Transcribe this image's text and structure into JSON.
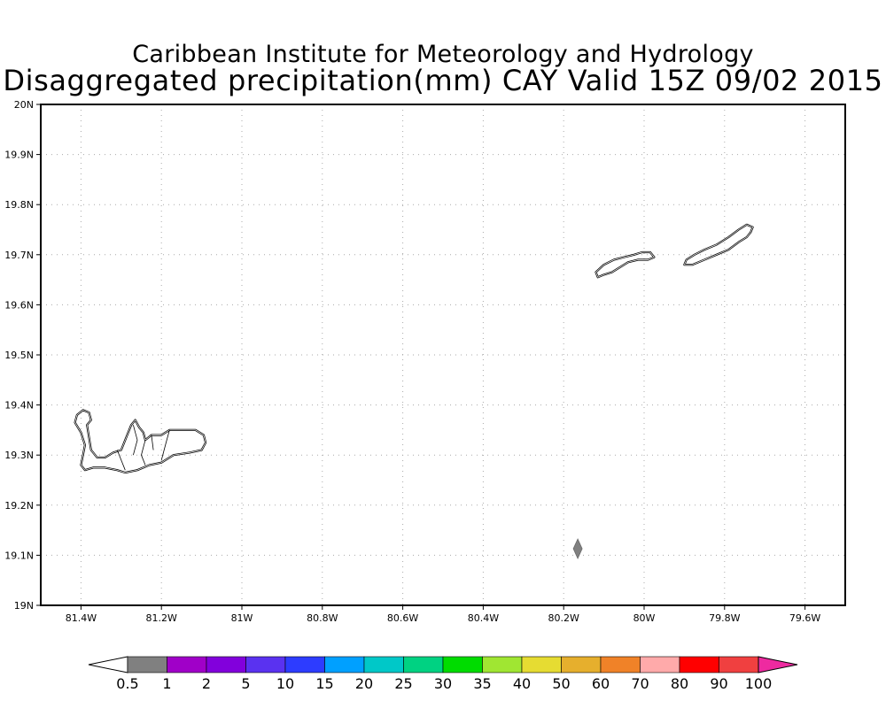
{
  "title": {
    "line1": "Caribbean Institute for Meteorology and Hydrology",
    "line2": "Disaggregated precipitation(mm) CAY Valid 15Z 09/02 2015"
  },
  "map": {
    "lon_range": [
      -81.5,
      -79.5
    ],
    "lat_range": [
      19.0,
      20.0
    ],
    "grid": "dotted",
    "lon_ticks": [
      {
        "value": -81.4,
        "label": "81.4W"
      },
      {
        "value": -81.2,
        "label": "81.2W"
      },
      {
        "value": -81.0,
        "label": "81W"
      },
      {
        "value": -80.8,
        "label": "80.8W"
      },
      {
        "value": -80.6,
        "label": "80.6W"
      },
      {
        "value": -80.4,
        "label": "80.4W"
      },
      {
        "value": -80.2,
        "label": "80.2W"
      },
      {
        "value": -80.0,
        "label": "80W"
      },
      {
        "value": -79.8,
        "label": "79.8W"
      },
      {
        "value": -79.6,
        "label": "79.6W"
      }
    ],
    "lat_ticks": [
      {
        "value": 19.0,
        "label": "19N"
      },
      {
        "value": 19.1,
        "label": "19.1N"
      },
      {
        "value": 19.2,
        "label": "19.2N"
      },
      {
        "value": 19.3,
        "label": "19.3N"
      },
      {
        "value": 19.4,
        "label": "19.4N"
      },
      {
        "value": 19.5,
        "label": "19.5N"
      },
      {
        "value": 19.6,
        "label": "19.6N"
      },
      {
        "value": 19.7,
        "label": "19.7N"
      },
      {
        "value": 19.8,
        "label": "19.8N"
      },
      {
        "value": 19.9,
        "label": "19.9N"
      },
      {
        "value": 20.0,
        "label": "20N"
      }
    ],
    "islands": [
      {
        "name": "grand-cayman",
        "outline": [
          [
            -81.41,
            19.38
          ],
          [
            -81.395,
            19.39
          ],
          [
            -81.38,
            19.385
          ],
          [
            -81.375,
            19.37
          ],
          [
            -81.385,
            19.36
          ],
          [
            -81.38,
            19.335
          ],
          [
            -81.375,
            19.31
          ],
          [
            -81.36,
            19.295
          ],
          [
            -81.34,
            19.295
          ],
          [
            -81.32,
            19.305
          ],
          [
            -81.3,
            19.31
          ],
          [
            -81.29,
            19.33
          ],
          [
            -81.275,
            19.36
          ],
          [
            -81.265,
            19.37
          ],
          [
            -81.255,
            19.355
          ],
          [
            -81.245,
            19.345
          ],
          [
            -81.24,
            19.33
          ],
          [
            -81.225,
            19.34
          ],
          [
            -81.2,
            19.34
          ],
          [
            -81.18,
            19.35
          ],
          [
            -81.15,
            19.35
          ],
          [
            -81.115,
            19.35
          ],
          [
            -81.095,
            19.34
          ],
          [
            -81.09,
            19.325
          ],
          [
            -81.1,
            19.31
          ],
          [
            -81.13,
            19.305
          ],
          [
            -81.17,
            19.3
          ],
          [
            -81.2,
            19.285
          ],
          [
            -81.23,
            19.28
          ],
          [
            -81.26,
            19.27
          ],
          [
            -81.29,
            19.265
          ],
          [
            -81.31,
            19.27
          ],
          [
            -81.34,
            19.275
          ],
          [
            -81.37,
            19.275
          ],
          [
            -81.39,
            19.27
          ],
          [
            -81.4,
            19.28
          ],
          [
            -81.395,
            19.3
          ],
          [
            -81.39,
            19.32
          ],
          [
            -81.4,
            19.345
          ],
          [
            -81.415,
            19.365
          ]
        ],
        "districts": [
          [
            [
              -81.31,
              19.31
            ],
            [
              -81.3,
              19.29
            ],
            [
              -81.29,
              19.27
            ]
          ],
          [
            [
              -81.24,
              19.33
            ],
            [
              -81.25,
              19.3
            ],
            [
              -81.24,
              19.28
            ]
          ],
          [
            [
              -81.18,
              19.35
            ],
            [
              -81.19,
              19.32
            ],
            [
              -81.2,
              19.29
            ]
          ],
          [
            [
              -81.27,
              19.36
            ],
            [
              -81.26,
              19.33
            ],
            [
              -81.27,
              19.3
            ]
          ],
          [
            [
              -81.225,
              19.34
            ],
            [
              -81.22,
              19.31
            ]
          ]
        ]
      },
      {
        "name": "cayman-brac",
        "outline": [
          [
            -79.73,
            19.755
          ],
          [
            -79.745,
            19.76
          ],
          [
            -79.765,
            19.75
          ],
          [
            -79.79,
            19.735
          ],
          [
            -79.82,
            19.72
          ],
          [
            -79.85,
            19.71
          ],
          [
            -79.875,
            19.7
          ],
          [
            -79.895,
            19.69
          ],
          [
            -79.9,
            19.68
          ],
          [
            -79.88,
            19.68
          ],
          [
            -79.85,
            19.69
          ],
          [
            -79.82,
            19.7
          ],
          [
            -79.79,
            19.71
          ],
          [
            -79.765,
            19.725
          ],
          [
            -79.745,
            19.735
          ],
          [
            -79.735,
            19.745
          ]
        ]
      },
      {
        "name": "little-cayman",
        "outline": [
          [
            -80.12,
            19.665
          ],
          [
            -80.1,
            19.68
          ],
          [
            -80.075,
            19.69
          ],
          [
            -80.05,
            19.695
          ],
          [
            -80.025,
            19.7
          ],
          [
            -80.005,
            19.705
          ],
          [
            -79.985,
            19.705
          ],
          [
            -79.975,
            19.695
          ],
          [
            -79.99,
            19.69
          ],
          [
            -80.015,
            19.69
          ],
          [
            -80.04,
            19.685
          ],
          [
            -80.06,
            19.675
          ],
          [
            -80.08,
            19.665
          ],
          [
            -80.1,
            19.66
          ],
          [
            -80.115,
            19.655
          ]
        ]
      }
    ],
    "precip_cells": [
      {
        "lon": -80.165,
        "lat": 19.113,
        "class": "0.5-1",
        "color": "#808080"
      }
    ]
  },
  "legend": {
    "segments": [
      {
        "color": "#808080"
      },
      {
        "color": "#a000c8"
      },
      {
        "color": "#8200dc"
      },
      {
        "color": "#5a32f0"
      },
      {
        "color": "#2d3cff"
      },
      {
        "color": "#00a0ff"
      },
      {
        "color": "#00c8c8"
      },
      {
        "color": "#00d282"
      },
      {
        "color": "#00dc00"
      },
      {
        "color": "#a0e632"
      },
      {
        "color": "#e6dc32"
      },
      {
        "color": "#e6af2d"
      },
      {
        "color": "#f08228"
      },
      {
        "color": "#ffaaaa"
      },
      {
        "color": "#ff0000"
      },
      {
        "color": "#f04040"
      }
    ],
    "left_cap_color": "#ffffff",
    "right_cap_color": "#ee2aa0",
    "labels": [
      "0.5",
      "1",
      "2",
      "5",
      "10",
      "15",
      "20",
      "25",
      "30",
      "35",
      "40",
      "50",
      "60",
      "70",
      "80",
      "90",
      "100"
    ]
  }
}
